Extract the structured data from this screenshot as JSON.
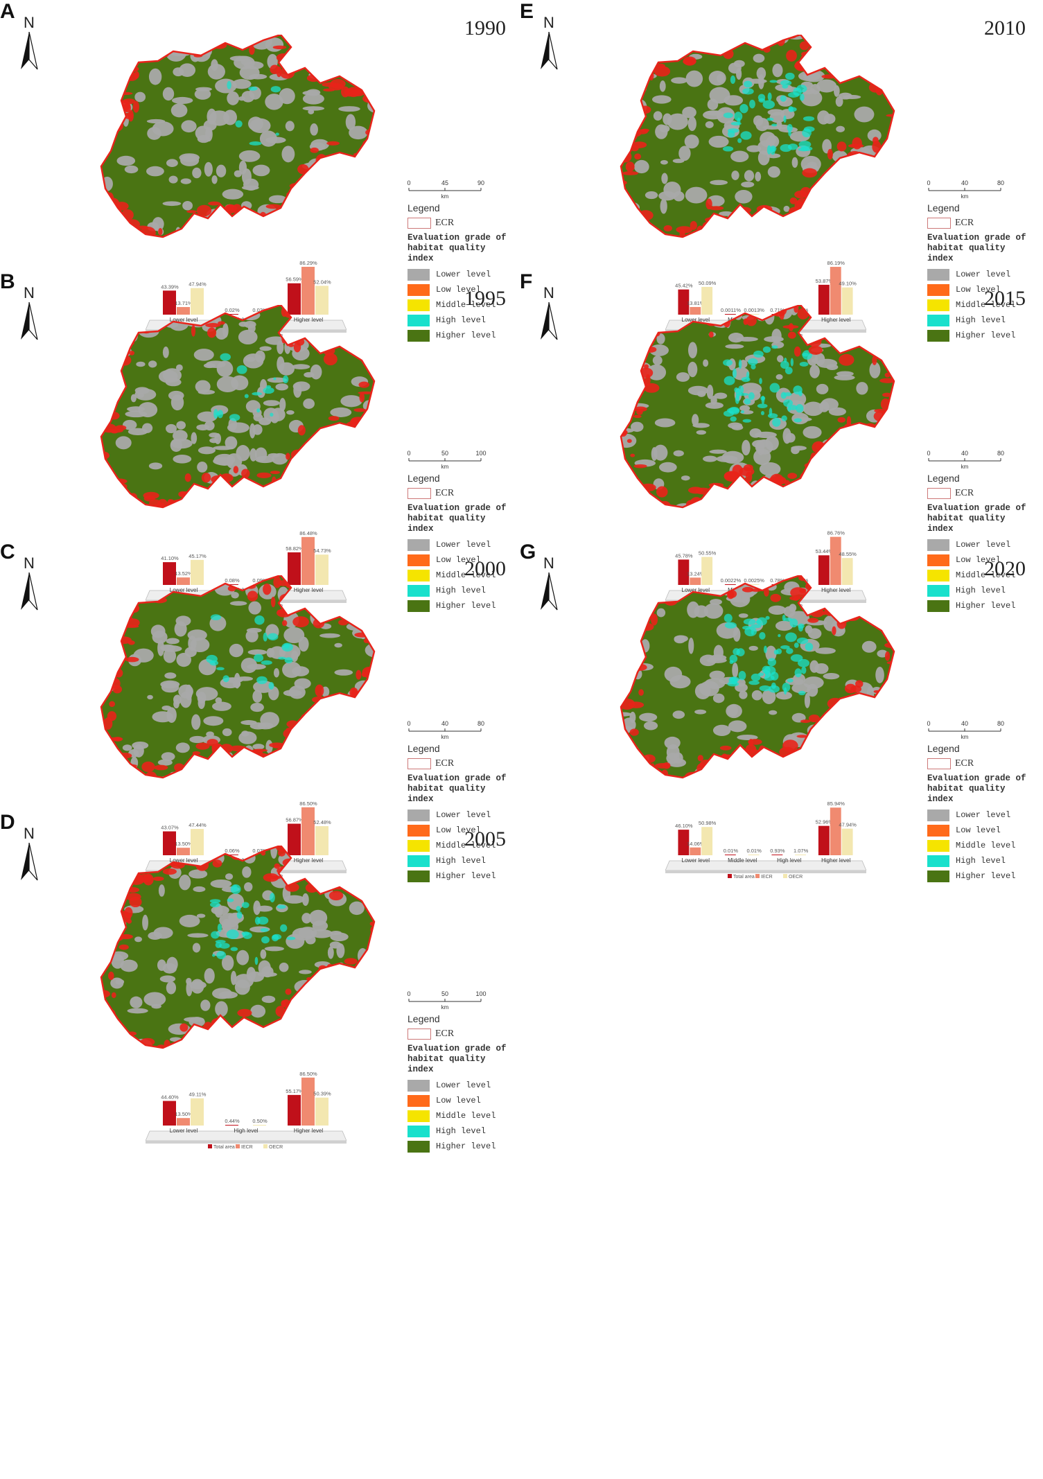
{
  "colors": {
    "lower": "#a9a9a9",
    "low": "#ff6a1a",
    "middle": "#f5e400",
    "high": "#19e0cc",
    "higher": "#4a7413",
    "ecr": "#e8231a",
    "total": "#c0101a",
    "iecr": "#f08a70",
    "oecr": "#f3e7b0"
  },
  "legend": {
    "title": "Legend",
    "ecr": "ECR",
    "eval_title_1": "Evaluation grade of",
    "eval_title_2": "habitat quality index",
    "items": [
      "Lower level",
      "Low level",
      "Middle level",
      "High level",
      "Higher level"
    ]
  },
  "north_label": "N",
  "scale_unit": "km",
  "chart_legend": [
    "Total area",
    "IECR",
    "OECR"
  ],
  "panels": [
    {
      "label": "A",
      "year": "1990",
      "scale": [
        "0",
        "45",
        "90"
      ],
      "chart_data": {
        "type": "bar",
        "categories": [
          "Lower level",
          "High level",
          "Higher level"
        ],
        "series": [
          {
            "name": "Total area",
            "values": [
              43.39,
              0.02,
              56.59
            ],
            "labels": [
              "43.39%",
              "0.02%",
              "56.59%"
            ]
          },
          {
            "name": "IECR",
            "values": [
              13.71,
              0,
              86.29
            ],
            "labels": [
              "13.71%",
              "",
              "86.29%"
            ]
          },
          {
            "name": "OECR",
            "values": [
              47.94,
              0.02,
              52.04
            ],
            "labels": [
              "47.94%",
              "0.02%",
              "52.04%"
            ]
          }
        ]
      }
    },
    {
      "label": "B",
      "year": "1995",
      "scale": [
        "0",
        "50",
        "100"
      ],
      "chart_data": {
        "type": "bar",
        "categories": [
          "Lower level",
          "High level",
          "Higher level"
        ],
        "series": [
          {
            "name": "Total area",
            "values": [
              41.1,
              0.08,
              58.82
            ],
            "labels": [
              "41.10%",
              "0.08%",
              "58.82%"
            ]
          },
          {
            "name": "IECR",
            "values": [
              13.52,
              0,
              86.48
            ],
            "labels": [
              "13.52%",
              "",
              "86.48%"
            ]
          },
          {
            "name": "OECR",
            "values": [
              45.17,
              0.09,
              54.73
            ],
            "labels": [
              "45.17%",
              "0.09%",
              "54.73%"
            ]
          }
        ]
      }
    },
    {
      "label": "C",
      "year": "2000",
      "scale": [
        "0",
        "40",
        "80"
      ],
      "chart_data": {
        "type": "bar",
        "categories": [
          "Lower level",
          "High level",
          "Higher level"
        ],
        "series": [
          {
            "name": "Total area",
            "values": [
              43.07,
              0.06,
              56.87
            ],
            "labels": [
              "43.07%",
              "0.06%",
              "56.87%"
            ]
          },
          {
            "name": "IECR",
            "values": [
              13.5,
              0,
              86.5
            ],
            "labels": [
              "13.50%",
              "",
              "86.50%"
            ]
          },
          {
            "name": "OECR",
            "values": [
              47.44,
              0.07,
              52.48
            ],
            "labels": [
              "47.44%",
              "0.07%",
              "52.48%"
            ]
          }
        ]
      }
    },
    {
      "label": "D",
      "year": "2005",
      "scale": [
        "0",
        "50",
        "100"
      ],
      "chart_data": {
        "type": "bar",
        "categories": [
          "Lower level",
          "High level",
          "Higher level"
        ],
        "series": [
          {
            "name": "Total area",
            "values": [
              44.4,
              0.44,
              55.17
            ],
            "labels": [
              "44.40%",
              "0.44%",
              "55.17%"
            ]
          },
          {
            "name": "IECR",
            "values": [
              13.5,
              0,
              86.5
            ],
            "labels": [
              "13.50%",
              "",
              "86.50%"
            ]
          },
          {
            "name": "OECR",
            "values": [
              49.11,
              0.5,
              50.39
            ],
            "labels": [
              "49.11%",
              "0.50%",
              "50.39%"
            ]
          }
        ]
      }
    },
    {
      "label": "E",
      "year": "2010",
      "scale": [
        "0",
        "40",
        "80"
      ],
      "chart_data": {
        "type": "bar",
        "categories": [
          "Lower level",
          "Middle level",
          "High level",
          "Higher level"
        ],
        "series": [
          {
            "name": "Total area",
            "values": [
              45.42,
              0.0011,
              0.71,
              53.87
            ],
            "labels": [
              "45.42%",
              "0.0011%",
              "0.71%",
              "53.87%"
            ]
          },
          {
            "name": "IECR",
            "values": [
              13.81,
              0,
              0,
              86.19
            ],
            "labels": [
              "13.81%",
              "",
              "",
              "86.19%"
            ]
          },
          {
            "name": "OECR",
            "values": [
              50.09,
              0.0013,
              0.81,
              49.1
            ],
            "labels": [
              "50.09%",
              "0.0013%",
              "0.81%",
              "49.10%"
            ]
          }
        ]
      }
    },
    {
      "label": "F",
      "year": "2015",
      "scale": [
        "0",
        "40",
        "80"
      ],
      "chart_data": {
        "type": "bar",
        "categories": [
          "Lower level",
          "Middle level",
          "High level",
          "Higher level"
        ],
        "series": [
          {
            "name": "Total area",
            "values": [
              45.78,
              0.0022,
              0.78,
              53.44
            ],
            "labels": [
              "45.78%",
              "0.0022%",
              "0.78%",
              "53.44%"
            ]
          },
          {
            "name": "IECR",
            "values": [
              13.24,
              0,
              0,
              86.76
            ],
            "labels": [
              "13.24%",
              "",
              "",
              "86.76%"
            ]
          },
          {
            "name": "OECR",
            "values": [
              50.55,
              0.0025,
              0.9,
              48.55
            ],
            "labels": [
              "50.55%",
              "0.0025%",
              "0.90%",
              "48.55%"
            ]
          }
        ]
      }
    },
    {
      "label": "G",
      "year": "2020",
      "scale": [
        "0",
        "40",
        "80"
      ],
      "chart_data": {
        "type": "bar",
        "categories": [
          "Lower level",
          "Middle level",
          "High level",
          "Higher level"
        ],
        "series": [
          {
            "name": "Total area",
            "values": [
              46.1,
              0.01,
              0.93,
              52.96
            ],
            "labels": [
              "46.10%",
              "0.01%",
              "0.93%",
              "52.96%"
            ]
          },
          {
            "name": "IECR",
            "values": [
              14.06,
              0,
              0,
              85.94
            ],
            "labels": [
              "14.06%",
              "",
              "",
              "85.94%"
            ]
          },
          {
            "name": "OECR",
            "values": [
              50.98,
              0.01,
              1.07,
              47.94
            ],
            "labels": [
              "50.98%",
              "0.01%",
              "1.07%",
              "47.94%"
            ]
          }
        ]
      }
    }
  ]
}
